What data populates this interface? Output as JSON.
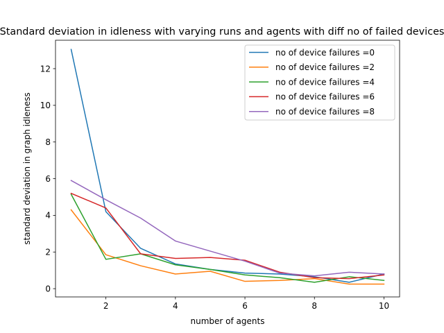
{
  "chart_data": {
    "type": "line",
    "title": "Standard deviation in idleness with varying runs and agents with diff no of failed devices",
    "xlabel": "number of agents",
    "ylabel": "standard deviation in graph idleness",
    "x": [
      1,
      2,
      3,
      4,
      5,
      6,
      7,
      8,
      9,
      10
    ],
    "xlim": [
      0.55,
      10.45
    ],
    "ylim": [
      -0.45,
      13.55
    ],
    "xticks": [
      2,
      4,
      6,
      8,
      10
    ],
    "yticks": [
      0,
      2,
      4,
      6,
      8,
      10,
      12
    ],
    "grid": false,
    "legend_position": "upper right",
    "series": [
      {
        "name": "no of device failures =0",
        "color": "#1f77b4",
        "values": [
          13.05,
          4.2,
          2.2,
          1.35,
          1.05,
          0.85,
          0.8,
          0.65,
          0.35,
          0.8
        ]
      },
      {
        "name": "no of device failures =2",
        "color": "#ff7f0e",
        "values": [
          4.3,
          1.85,
          1.25,
          0.8,
          0.95,
          0.4,
          0.45,
          0.55,
          0.25,
          0.25
        ]
      },
      {
        "name": "no of device failures =4",
        "color": "#2ca02c",
        "values": [
          5.15,
          1.6,
          1.9,
          1.3,
          1.05,
          0.75,
          0.6,
          0.35,
          0.65,
          0.45
        ]
      },
      {
        "name": "no of device failures =6",
        "color": "#d62728",
        "values": [
          5.2,
          4.4,
          1.9,
          1.65,
          1.7,
          1.55,
          0.9,
          0.6,
          0.55,
          0.75
        ]
      },
      {
        "name": "no of device failures =8",
        "color": "#9467bd",
        "values": [
          5.9,
          4.85,
          3.85,
          2.6,
          2.05,
          1.5,
          0.85,
          0.7,
          0.9,
          0.8
        ]
      }
    ]
  }
}
